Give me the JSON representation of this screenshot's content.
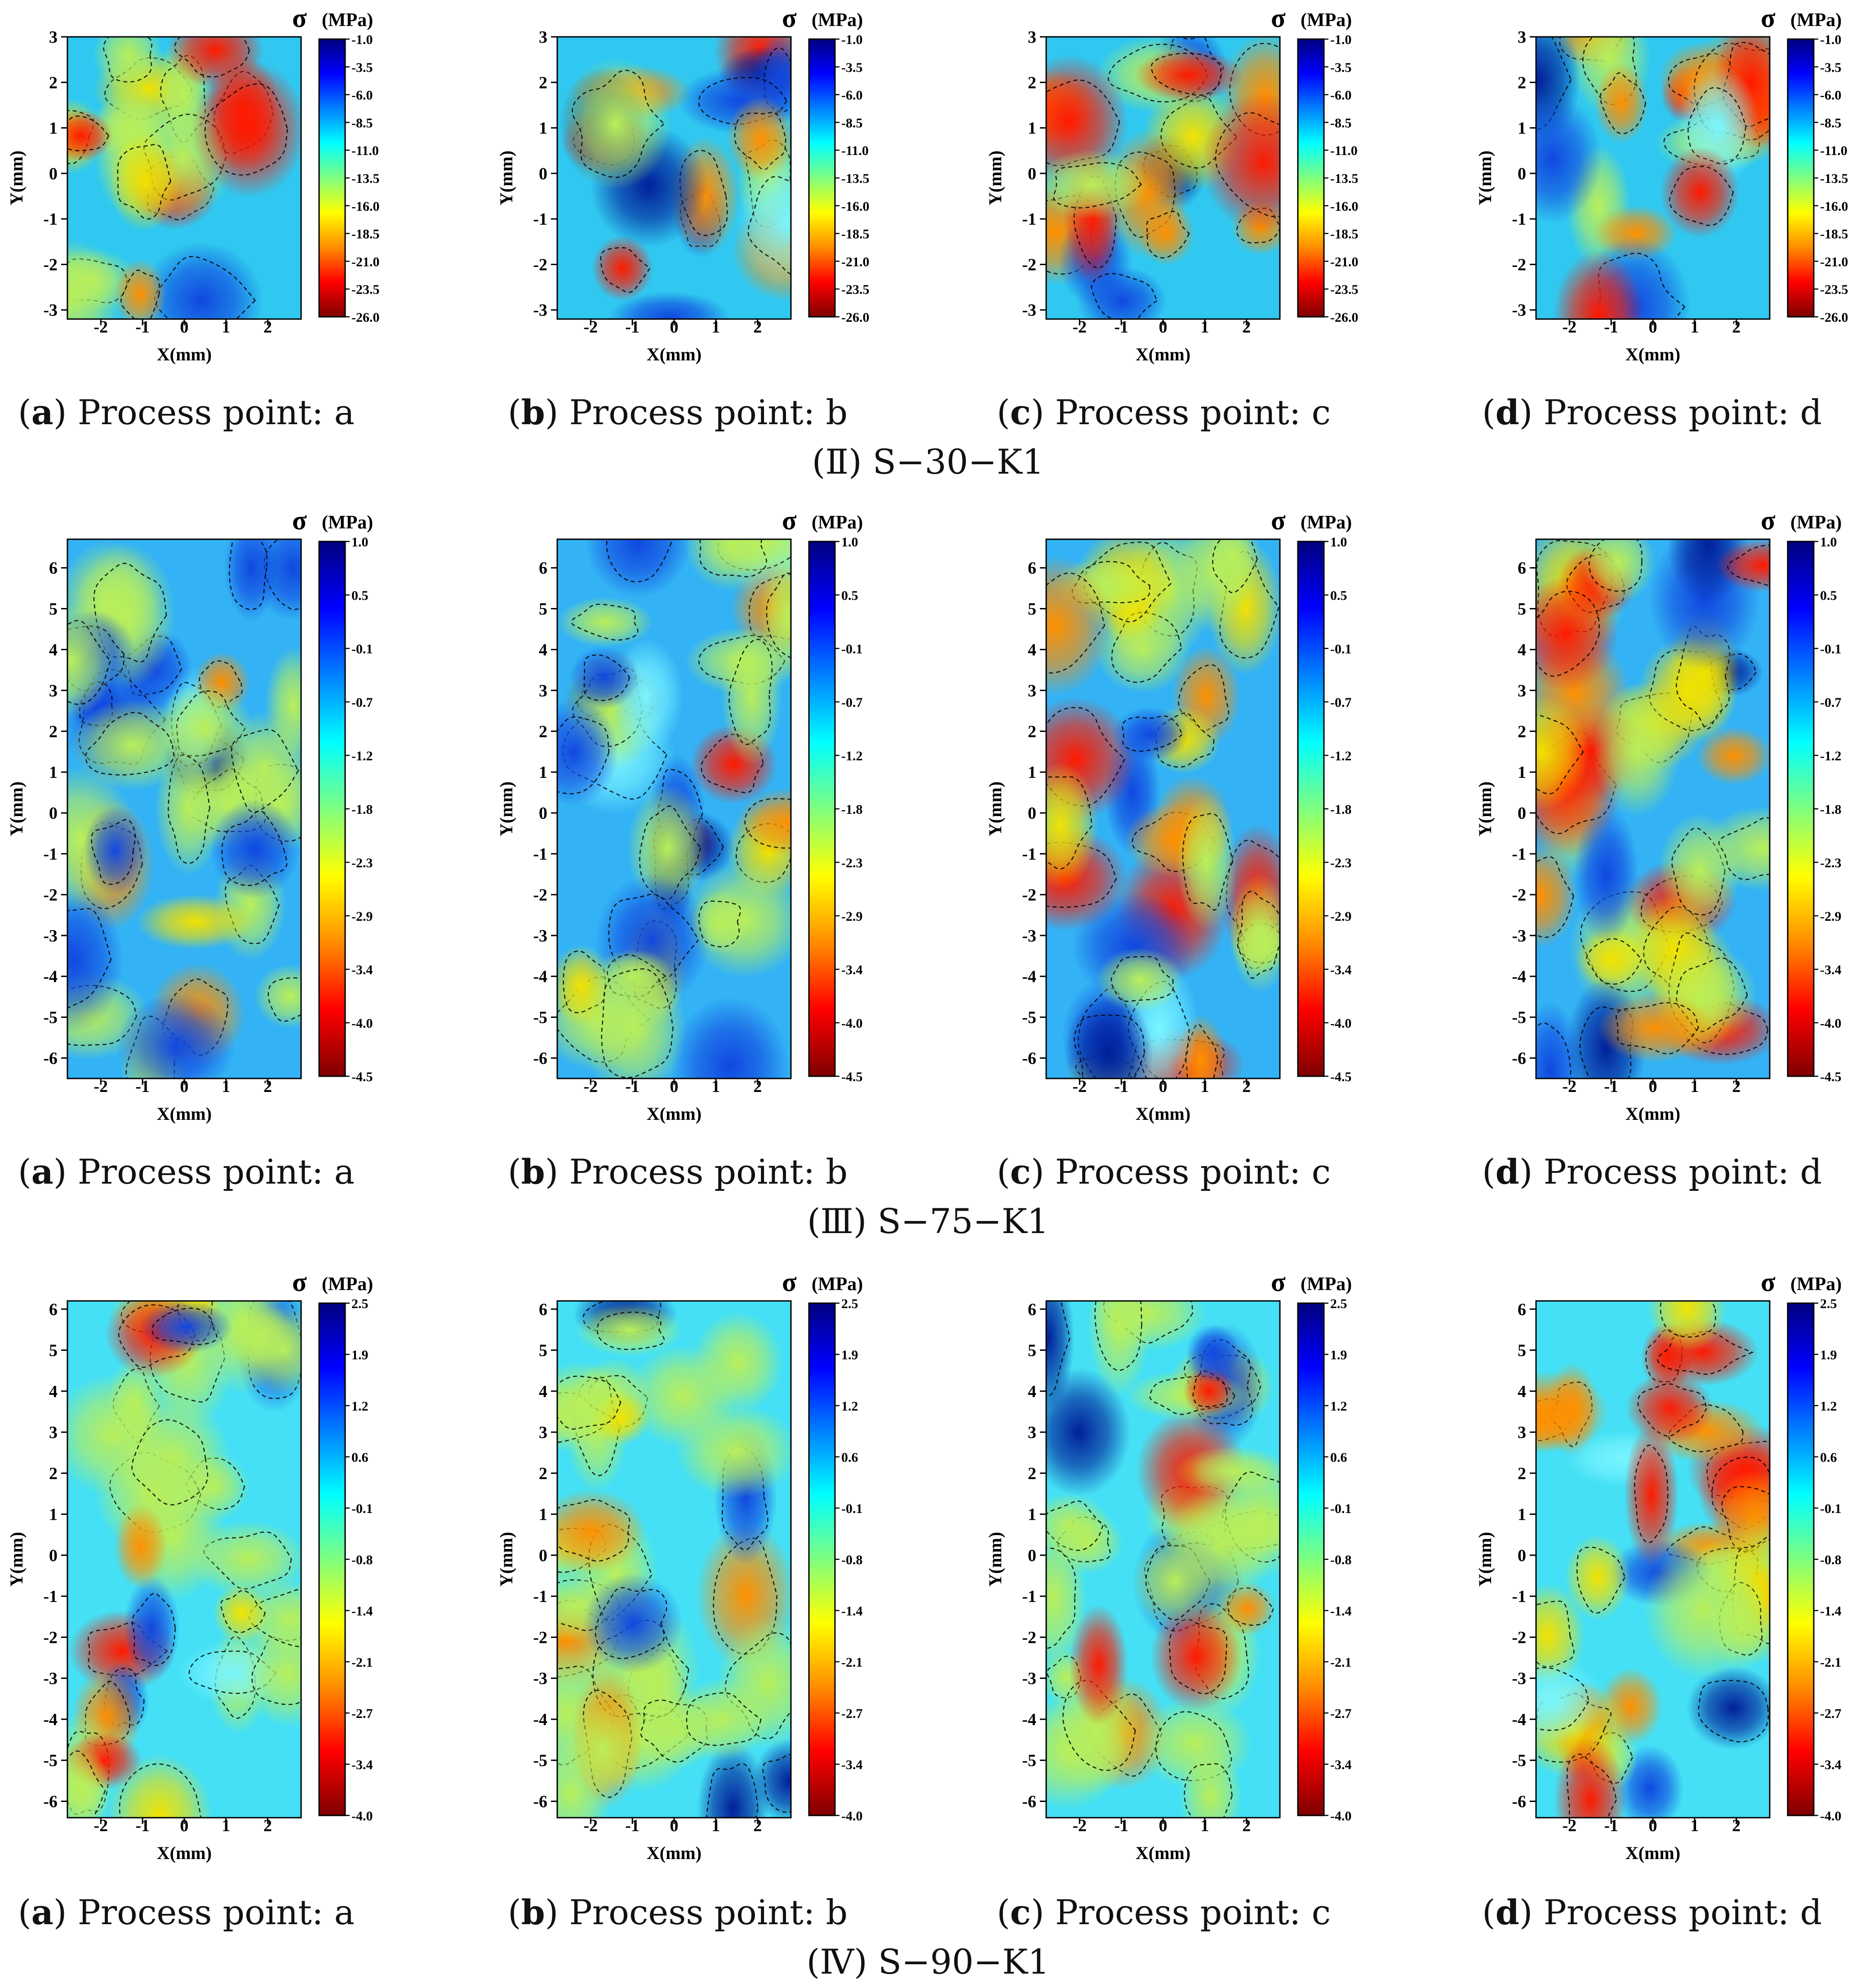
{
  "colormap": [
    "#7f0000",
    "#ff0000",
    "#ff8c00",
    "#ffff00",
    "#7fff7f",
    "#00ffff",
    "#0080ff",
    "#0000ff",
    "#00007f"
  ],
  "contour_line_color": "#000000",
  "panel_letters": [
    "a",
    "b",
    "c",
    "d"
  ],
  "caption_prefix": "Process point: ",
  "panel_caption_label": "Process point: ",
  "groups": [
    {
      "group_caption": "(Ⅱ) S−30−K1",
      "chart_data": {
        "type": "heatmap",
        "title": "σ (MPa)",
        "title_symbol": "σ",
        "title_unit": "(MPa)",
        "xlabel": "X(mm)",
        "ylabel": "Y(mm)",
        "xlim": [
          -2.8,
          2.8
        ],
        "ylim": [
          -3.2,
          3.0
        ],
        "x_ticks": [
          "-2",
          "-1",
          "0",
          "1",
          "2"
        ],
        "y_ticks": [
          "3",
          "2",
          "1",
          "0",
          "-1",
          "-2",
          "-3"
        ],
        "colorbar_range": [
          -26.0,
          -1.0
        ],
        "colorbar_ticks": [
          "-1.0",
          "-3.5",
          "-6.0",
          "-8.5",
          "-11.0",
          "-13.5",
          "-16.0",
          "-18.5",
          "-21.0",
          "-23.5",
          "-26.0"
        ],
        "panels": [
          {
            "letter": "a",
            "caption": "Process point: a",
            "intensity": 0.7
          },
          {
            "letter": "b",
            "caption": "Process point: b",
            "intensity": 0.8
          },
          {
            "letter": "c",
            "caption": "Process point: c",
            "intensity": 0.95
          },
          {
            "letter": "d",
            "caption": "Process point: d",
            "intensity": 0.85
          }
        ]
      }
    },
    {
      "group_caption": "(Ⅲ) S−75−K1",
      "chart_data": {
        "type": "heatmap",
        "title": "σ (MPa)",
        "title_symbol": "σ",
        "title_unit": "(MPa)",
        "xlabel": "X(mm)",
        "ylabel": "Y(mm)",
        "xlim": [
          -2.8,
          2.8
        ],
        "ylim": [
          -6.5,
          6.7
        ],
        "x_ticks": [
          "-2",
          "-1",
          "0",
          "1",
          "2"
        ],
        "y_ticks": [
          "6",
          "5",
          "4",
          "3",
          "2",
          "1",
          "0",
          "-1",
          "-2",
          "-3",
          "-4",
          "-5",
          "-6"
        ],
        "colorbar_range": [
          -4.5,
          1.0
        ],
        "colorbar_ticks": [
          "1.0",
          "0.5",
          "-0.1",
          "-0.7",
          "-1.2",
          "-1.8",
          "-2.3",
          "-2.9",
          "-3.4",
          "-4.0",
          "-4.5"
        ],
        "panels": [
          {
            "letter": "a",
            "caption": "Process point: a",
            "intensity": 0.35
          },
          {
            "letter": "b",
            "caption": "Process point: b",
            "intensity": 0.45
          },
          {
            "letter": "c",
            "caption": "Process point: c",
            "intensity": 0.55
          },
          {
            "letter": "d",
            "caption": "Process point: d",
            "intensity": 0.85
          }
        ]
      }
    },
    {
      "group_caption": "(Ⅳ) S−90−K1",
      "chart_data": {
        "type": "heatmap",
        "title": "σ (MPa)",
        "title_symbol": "σ",
        "title_unit": "(MPa)",
        "xlabel": "X(mm)",
        "ylabel": "Y(mm)",
        "xlim": [
          -2.8,
          2.8
        ],
        "ylim": [
          -6.4,
          6.2
        ],
        "x_ticks": [
          "-2",
          "-1",
          "0",
          "1",
          "2"
        ],
        "y_ticks": [
          "6",
          "5",
          "4",
          "3",
          "2",
          "1",
          "0",
          "-1",
          "-2",
          "-3",
          "-4",
          "-5",
          "-6"
        ],
        "colorbar_range": [
          -4.0,
          2.5
        ],
        "colorbar_ticks": [
          "2.5",
          "1.9",
          "1.2",
          "0.6",
          "-0.1",
          "-0.8",
          "-1.4",
          "-2.1",
          "-2.7",
          "-3.4",
          "-4.0"
        ],
        "panels": [
          {
            "letter": "a",
            "caption": "Process point: a",
            "intensity": 0.3
          },
          {
            "letter": "b",
            "caption": "Process point: b",
            "intensity": 0.3
          },
          {
            "letter": "c",
            "caption": "Process point: c",
            "intensity": 0.4
          },
          {
            "letter": "d",
            "caption": "Process point: d",
            "intensity": 0.8
          }
        ]
      }
    }
  ]
}
